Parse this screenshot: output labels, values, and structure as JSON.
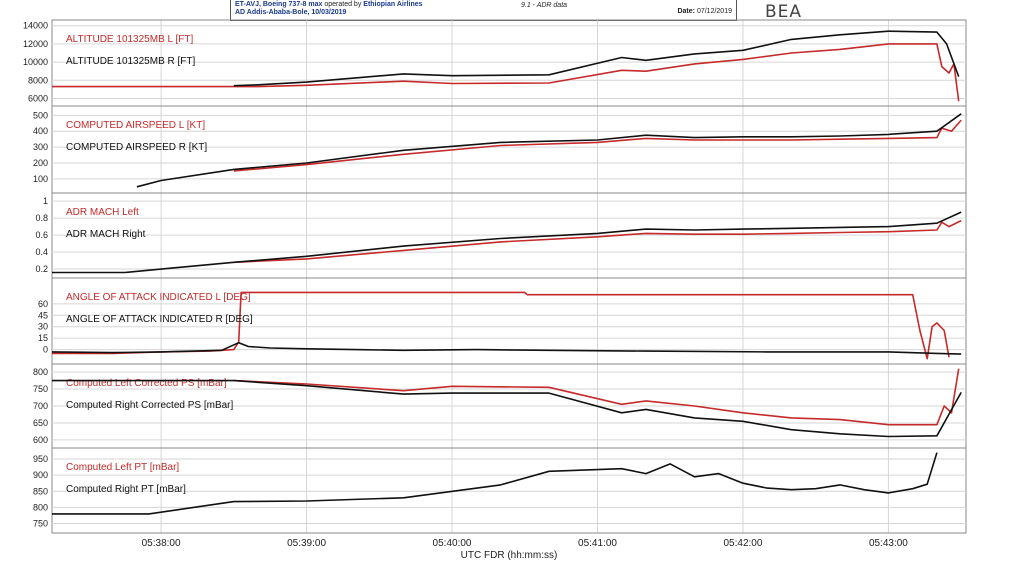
{
  "header": {
    "line1_bold": "ET-AVJ, Boeing 737-8 max",
    "line1_plain": " operated by ",
    "line1_airline": "Ethiopian Airlines",
    "line2": "AD Addis-Ababa-Bole, 10/03/2019",
    "mid": "9.1 - ADR data",
    "date_label": "Date:",
    "date_value": "07/12/2019",
    "logo": "BEA"
  },
  "colors": {
    "left": "#c62a2a",
    "right": "#111111",
    "grid": "#d6d6d6",
    "frame": "#888888"
  },
  "chart_data": {
    "type": "line",
    "xlabel": "UTC FDR (hh:mm:ss)",
    "x_ticks": [
      "05:38:00",
      "05:39:00",
      "05:40:00",
      "05:41:00",
      "05:42:00",
      "05:43:00"
    ],
    "x_tick_seconds": [
      0,
      60,
      120,
      180,
      240,
      300
    ],
    "xlim": [
      -45,
      332
    ],
    "panels": [
      {
        "ylim": [
          5500,
          14300
        ],
        "yticks": [
          6000,
          8000,
          10000,
          12000,
          14000
        ],
        "series": [
          {
            "name": "ALTITUDE 101325MB L [FT]",
            "color": "red",
            "x": [
              -45,
              30,
              40,
              60,
              100,
              120,
              160,
              190,
              200,
              220,
              240,
              260,
              280,
              300,
              320,
              322,
              325,
              327,
              329
            ],
            "y": [
              7300,
              7300,
              7300,
              7450,
              7900,
              7650,
              7700,
              9100,
              9000,
              9800,
              10300,
              11000,
              11400,
              12000,
              12000,
              9500,
              8800,
              9800,
              5700
            ]
          },
          {
            "name": "ALTITUDE 101325MB R [FT]",
            "color": "black",
            "x": [
              30,
              40,
              60,
              100,
              120,
              160,
              190,
              200,
              220,
              240,
              260,
              280,
              300,
              320,
              324,
              329
            ],
            "y": [
              7400,
              7500,
              7800,
              8700,
              8500,
              8600,
              10500,
              10200,
              10900,
              11300,
              12500,
              13000,
              13400,
              13300,
              12000,
              8400
            ]
          }
        ]
      },
      {
        "ylim": [
          30,
          540
        ],
        "yticks": [
          100,
          200,
          300,
          400,
          500
        ],
        "series": [
          {
            "name": "COMPUTED AIRSPEED L [KT]",
            "color": "red",
            "x": [
              30,
              60,
              100,
              140,
              180,
              200,
              220,
              240,
              260,
              280,
              300,
              320,
              322,
              326,
              330
            ],
            "y": [
              150,
              190,
              255,
              310,
              330,
              355,
              345,
              345,
              345,
              350,
              355,
              360,
              420,
              400,
              470
            ]
          },
          {
            "name": "COMPUTED AIRSPEED R [KT]",
            "color": "black",
            "x": [
              -10,
              0,
              30,
              60,
              100,
              140,
              180,
              200,
              220,
              240,
              260,
              280,
              300,
              320,
              330
            ],
            "y": [
              50,
              90,
              160,
              200,
              280,
              330,
              345,
              375,
              360,
              365,
              365,
              370,
              380,
              400,
              510
            ]
          }
        ]
      },
      {
        "ylim": [
          0.13,
          1.06
        ],
        "yticks": [
          0.2,
          0.4,
          0.6,
          0.8,
          1
        ],
        "series": [
          {
            "name": "ADR MACH Left",
            "color": "red",
            "x": [
              30,
              60,
              100,
              140,
              180,
              200,
              220,
              240,
              260,
              280,
              300,
              320,
              322,
              325,
              330
            ],
            "y": [
              0.28,
              0.32,
              0.42,
              0.52,
              0.58,
              0.62,
              0.61,
              0.61,
              0.62,
              0.63,
              0.64,
              0.66,
              0.75,
              0.7,
              0.77
            ]
          },
          {
            "name": "ADR MACH Right",
            "color": "black",
            "x": [
              -45,
              -15,
              0,
              30,
              60,
              100,
              140,
              180,
              200,
              220,
              240,
              260,
              280,
              300,
              320,
              330
            ],
            "y": [
              0.16,
              0.16,
              0.2,
              0.28,
              0.35,
              0.47,
              0.56,
              0.62,
              0.67,
              0.66,
              0.67,
              0.68,
              0.69,
              0.7,
              0.74,
              0.87
            ]
          }
        ]
      },
      {
        "ylim": [
          -15,
          90
        ],
        "yticks": [
          0,
          15,
          30,
          45,
          60
        ],
        "series": [
          {
            "name": "ANGLE OF ATTACK INDICATED L [DEG]",
            "color": "red",
            "x": [
              -45,
              -20,
              0,
              20,
              30,
              32,
              33,
              40,
              150,
              151,
              250,
              310,
              313,
              316,
              318,
              320,
              323,
              325
            ],
            "y": [
              -5,
              -5,
              -3,
              -2,
              0,
              10,
              75,
              75,
              75,
              72,
              72,
              72,
              25,
              -12,
              30,
              35,
              25,
              -10
            ]
          },
          {
            "name": "ANGLE OF ATTACK INDICATED R [DEG]",
            "color": "black",
            "x": [
              -45,
              -20,
              0,
              25,
              32,
              36,
              45,
              60,
              80,
              100,
              130,
              160,
              200,
              250,
              300,
              320,
              330
            ],
            "y": [
              -3,
              -4,
              -3,
              -1,
              9,
              4,
              2,
              1,
              0,
              -1,
              0,
              -1,
              -2,
              -3,
              -3,
              -5,
              -6
            ]
          }
        ]
      },
      {
        "ylim": [
          585,
          815
        ],
        "yticks": [
          600,
          650,
          700,
          750,
          800
        ],
        "series": [
          {
            "name": "Computed Left Corrected PS [mBar]",
            "color": "red",
            "x": [
              30,
              60,
              100,
              120,
              160,
              190,
              200,
              220,
              240,
              260,
              280,
              300,
              320,
              323,
              326,
              329
            ],
            "y": [
              775,
              765,
              745,
              758,
              755,
              705,
              715,
              700,
              680,
              665,
              660,
              645,
              645,
              700,
              680,
              810
            ]
          },
          {
            "name": "Computed Right Corrected PS [mBar]",
            "color": "black",
            "x": [
              -45,
              0,
              30,
              60,
              100,
              120,
              160,
              190,
              200,
              220,
              240,
              260,
              280,
              300,
              320,
              330
            ],
            "y": [
              775,
              775,
              775,
              760,
              735,
              738,
              738,
              680,
              690,
              665,
              655,
              630,
              618,
              610,
              612,
              740
            ]
          }
        ]
      },
      {
        "ylim": [
          730,
          975
        ],
        "yticks": [
          750,
          800,
          850,
          900,
          950
        ],
        "series": [
          {
            "name": "Computed Left PT [mBar]",
            "color": "red",
            "x": [],
            "y": []
          },
          {
            "name": "Computed Right PT [mBar]",
            "color": "black",
            "x": [
              -45,
              -5,
              30,
              60,
              100,
              140,
              160,
              190,
              200,
              210,
              220,
              230,
              240,
              250,
              260,
              270,
              280,
              290,
              300,
              310,
              316,
              320
            ],
            "y": [
              780,
              780,
              818,
              820,
              830,
              870,
              912,
              920,
              905,
              935,
              895,
              905,
              875,
              860,
              855,
              858,
              870,
              855,
              845,
              858,
              872,
              970
            ]
          }
        ]
      }
    ]
  }
}
